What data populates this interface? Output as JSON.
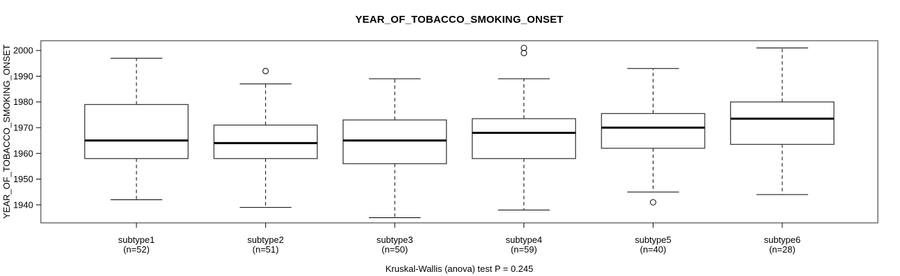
{
  "chart_data": {
    "type": "boxplot",
    "title": "YEAR_OF_TOBACCO_SMOKING_ONSET",
    "ylabel": "YEAR_OF_TOBACCO_SMOKING_ONSET",
    "xlabel": "",
    "caption": "Kruskal-Wallis (anova) test P = 0.245",
    "y_ticks": [
      1940,
      1950,
      1960,
      1970,
      1980,
      1990,
      2000
    ],
    "ylim": [
      1933,
      2003.8
    ],
    "grid": false,
    "legend": "none",
    "colors": {
      "background": "#ffffff",
      "frame_stroke": "#6e6e6e",
      "box_stroke": "#3c3c3c",
      "box_fill": "#ffffff",
      "median_stroke": "#000000",
      "whisker_stroke": "#000000",
      "outlier_stroke": "#2a2a2a",
      "text": "#000000"
    },
    "categories": [
      "subtype1",
      "subtype2",
      "subtype3",
      "subtype4",
      "subtype5",
      "subtype6"
    ],
    "sublabels": [
      "(n=52)",
      "(n=51)",
      "(n=50)",
      "(n=59)",
      "(n=40)",
      "(n=28)"
    ],
    "series": [
      {
        "name": "subtype1",
        "n": 52,
        "whisker_low": 1942,
        "q1": 1958,
        "median": 1965,
        "q3": 1979,
        "whisker_high": 1997,
        "outliers": []
      },
      {
        "name": "subtype2",
        "n": 51,
        "whisker_low": 1939,
        "q1": 1958,
        "median": 1964,
        "q3": 1971,
        "whisker_high": 1987,
        "outliers": [
          1992
        ]
      },
      {
        "name": "subtype3",
        "n": 50,
        "whisker_low": 1935,
        "q1": 1956,
        "median": 1965,
        "q3": 1973,
        "whisker_high": 1989,
        "outliers": []
      },
      {
        "name": "subtype4",
        "n": 59,
        "whisker_low": 1938,
        "q1": 1958,
        "median": 1968,
        "q3": 1973.5,
        "whisker_high": 1989,
        "outliers": [
          1999,
          2001
        ]
      },
      {
        "name": "subtype5",
        "n": 40,
        "whisker_low": 1945,
        "q1": 1962,
        "median": 1970,
        "q3": 1975.5,
        "whisker_high": 1993,
        "outliers": [
          1941
        ]
      },
      {
        "name": "subtype6",
        "n": 28,
        "whisker_low": 1944,
        "q1": 1963.5,
        "median": 1973.5,
        "q3": 1980,
        "whisker_high": 2001,
        "outliers": []
      }
    ]
  }
}
